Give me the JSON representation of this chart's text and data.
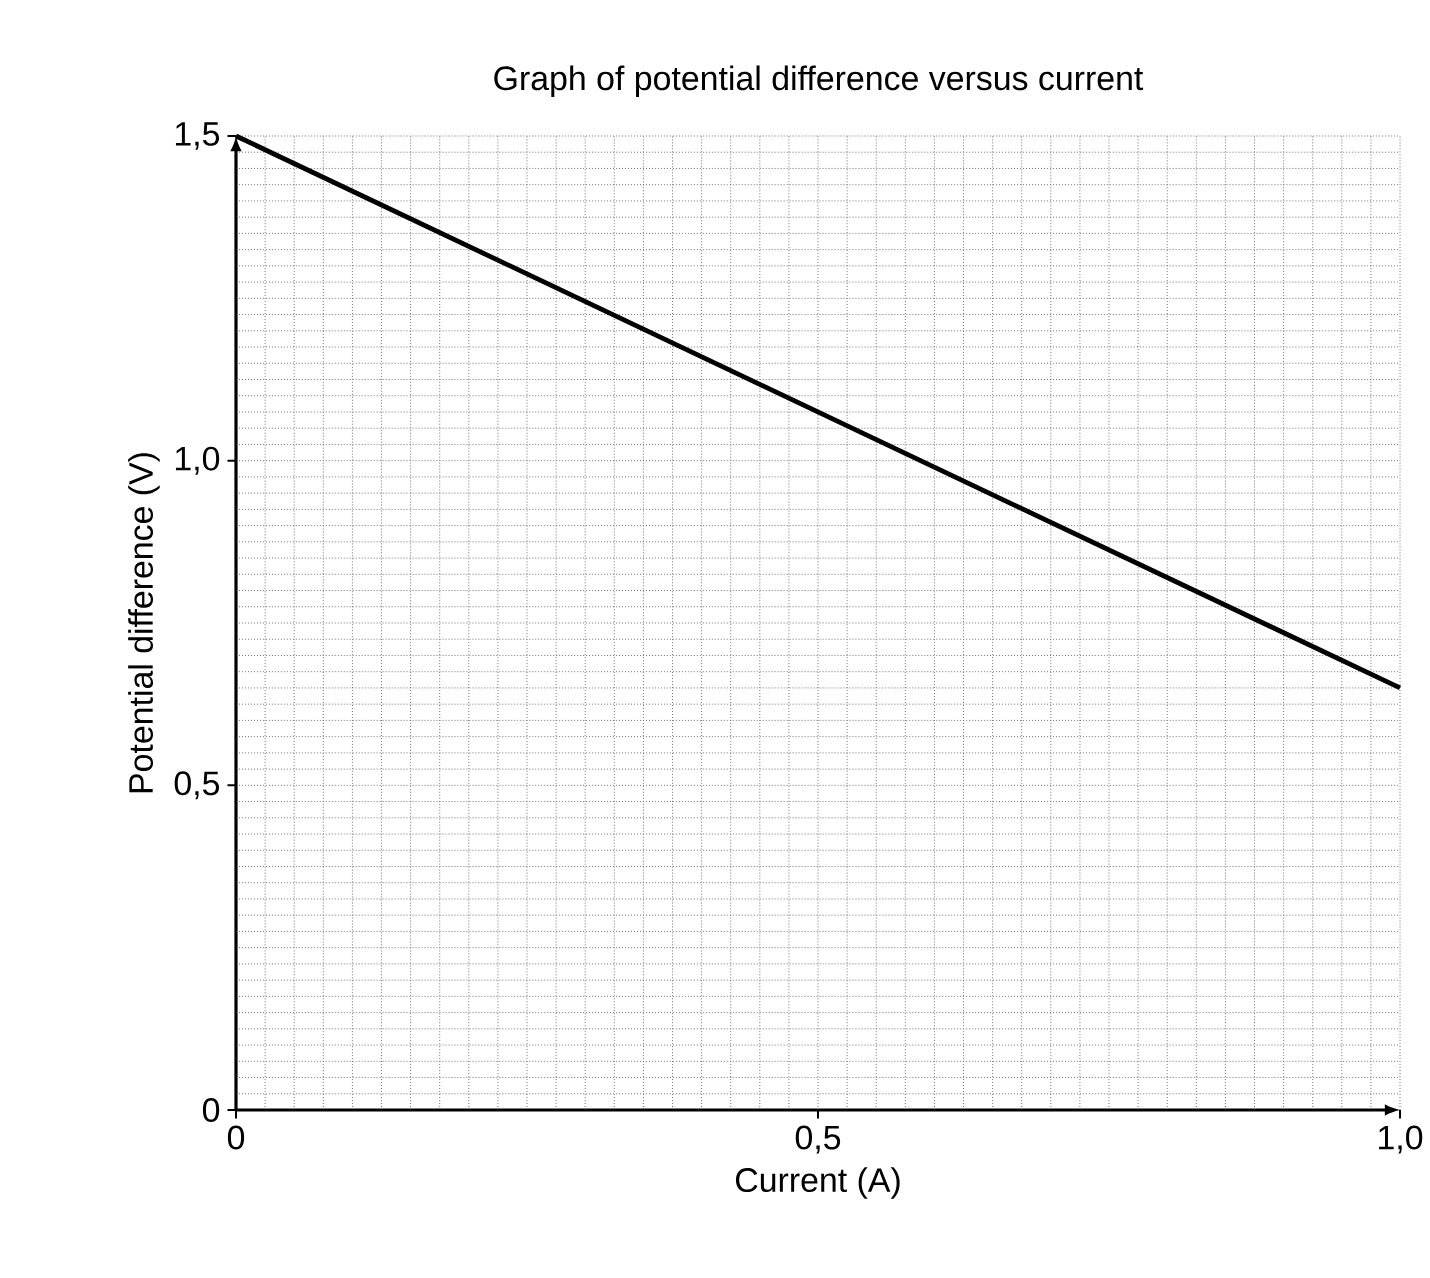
{
  "chart_data": {
    "type": "line",
    "title": "Graph of potential difference versus current",
    "xlabel": "Current (A)",
    "ylabel": "Potential difference (V)",
    "x": [
      0,
      1.0
    ],
    "values": [
      1.5,
      0.65
    ],
    "color": "#000000",
    "xlim": [
      0,
      1.0
    ],
    "ylim": [
      0,
      1.5
    ],
    "xticks": [
      0,
      {
        "value": 0.5,
        "label": "0,5"
      },
      {
        "value": 1.0,
        "label": "1,0"
      }
    ],
    "yticks": [
      0,
      {
        "value": 0.5,
        "label": "0,5"
      },
      {
        "value": 1.0,
        "label": "1,0"
      },
      {
        "value": 1.5,
        "label": "1,5"
      }
    ],
    "grid": true
  }
}
